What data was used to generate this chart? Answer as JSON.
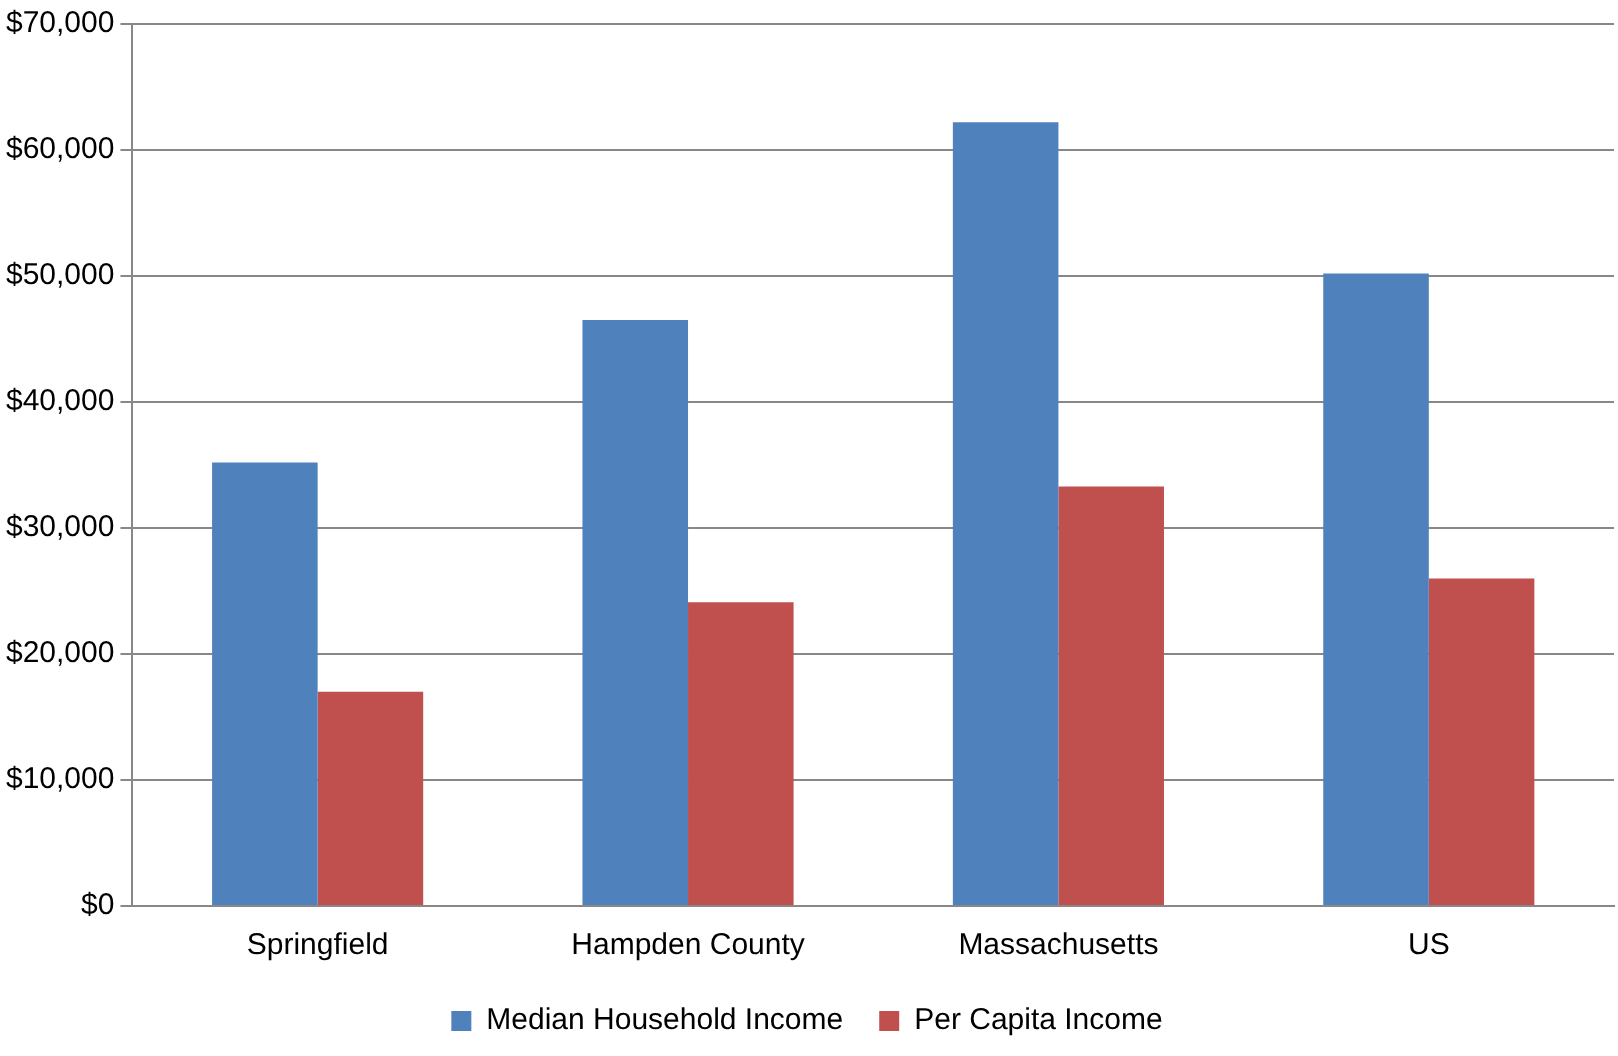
{
  "chart_data": {
    "type": "bar",
    "categories": [
      "Springfield",
      "Hampden County",
      "Massachusetts",
      "US"
    ],
    "series": [
      {
        "name": "Median Household Income",
        "color": "#4f81bd",
        "values": [
          35200,
          46500,
          62200,
          50200
        ]
      },
      {
        "name": "Per Capita Income",
        "color": "#c0504d",
        "values": [
          17000,
          24100,
          33300,
          26000
        ]
      }
    ],
    "ylim": [
      0,
      70000
    ],
    "yticks": [
      {
        "value": 0,
        "label": "$0"
      },
      {
        "value": 10000,
        "label": "$10,000"
      },
      {
        "value": 20000,
        "label": "$20,000"
      },
      {
        "value": 30000,
        "label": "$30,000"
      },
      {
        "value": 40000,
        "label": "$40,000"
      },
      {
        "value": 50000,
        "label": "$50,000"
      },
      {
        "value": 60000,
        "label": "$60,000"
      },
      {
        "value": 70000,
        "label": "$70,000"
      }
    ],
    "grid": "y",
    "legend": "bottom"
  }
}
